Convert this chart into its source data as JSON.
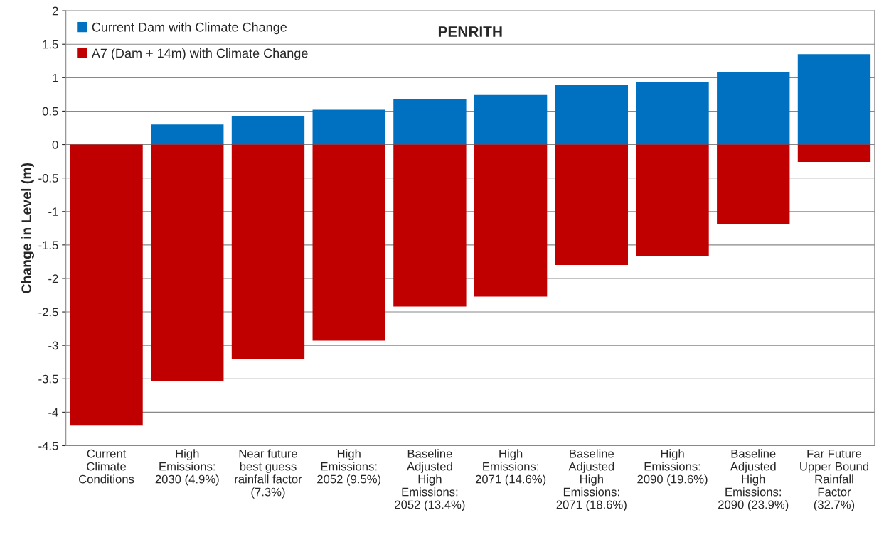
{
  "chart_data": {
    "type": "bar",
    "title": "PENRITH",
    "ylabel": "Change in Level (m)",
    "categories": [
      "Current\nClimate\nConditions",
      "High\nEmissions:\n2030 (4.9%)",
      "Near future\nbest guess\nrainfall factor\n(7.3%)",
      "High\nEmissions:\n2052 (9.5%)",
      "Baseline\nAdjusted\nHigh\nEmissions:\n2052 (13.4%)",
      "High\nEmissions:\n2071 (14.6%)",
      "Baseline\nAdjusted\nHigh\nEmissions:\n2071 (18.6%)",
      "High\nEmissions:\n2090 (19.6%)",
      "Baseline\nAdjusted\nHigh\nEmissions:\n2090 (23.9%)",
      "Far Future\nUpper Bound\nRainfall\nFactor\n(32.7%)"
    ],
    "series": [
      {
        "name": "Current Dam with Climate Change",
        "color": "#0070c0",
        "values": [
          null,
          0.3,
          0.43,
          0.52,
          0.68,
          0.74,
          0.89,
          0.93,
          1.08,
          1.35
        ]
      },
      {
        "name": "A7 (Dam + 14m) with Climate Change",
        "color": "#c00000",
        "values": [
          -4.2,
          -3.54,
          -3.21,
          -2.93,
          -2.42,
          -2.27,
          -1.8,
          -1.67,
          -1.19,
          -0.26
        ]
      }
    ],
    "stacked": true,
    "ylim": [
      -4.5,
      2
    ],
    "yticks": [
      {
        "value": -4.5,
        "label": "-4.5"
      },
      {
        "value": -4,
        "label": "-4"
      },
      {
        "value": -3.5,
        "label": "-3.5"
      },
      {
        "value": -3,
        "label": "-3"
      },
      {
        "value": -2.5,
        "label": "-2.5"
      },
      {
        "value": -2,
        "label": "-2"
      },
      {
        "value": -1.5,
        "label": "-1.5"
      },
      {
        "value": -1,
        "label": "-1"
      },
      {
        "value": -0.5,
        "label": "-0.5"
      },
      0,
      0.5,
      1,
      1.5,
      2
    ],
    "grid": "y",
    "legend": "top left"
  }
}
